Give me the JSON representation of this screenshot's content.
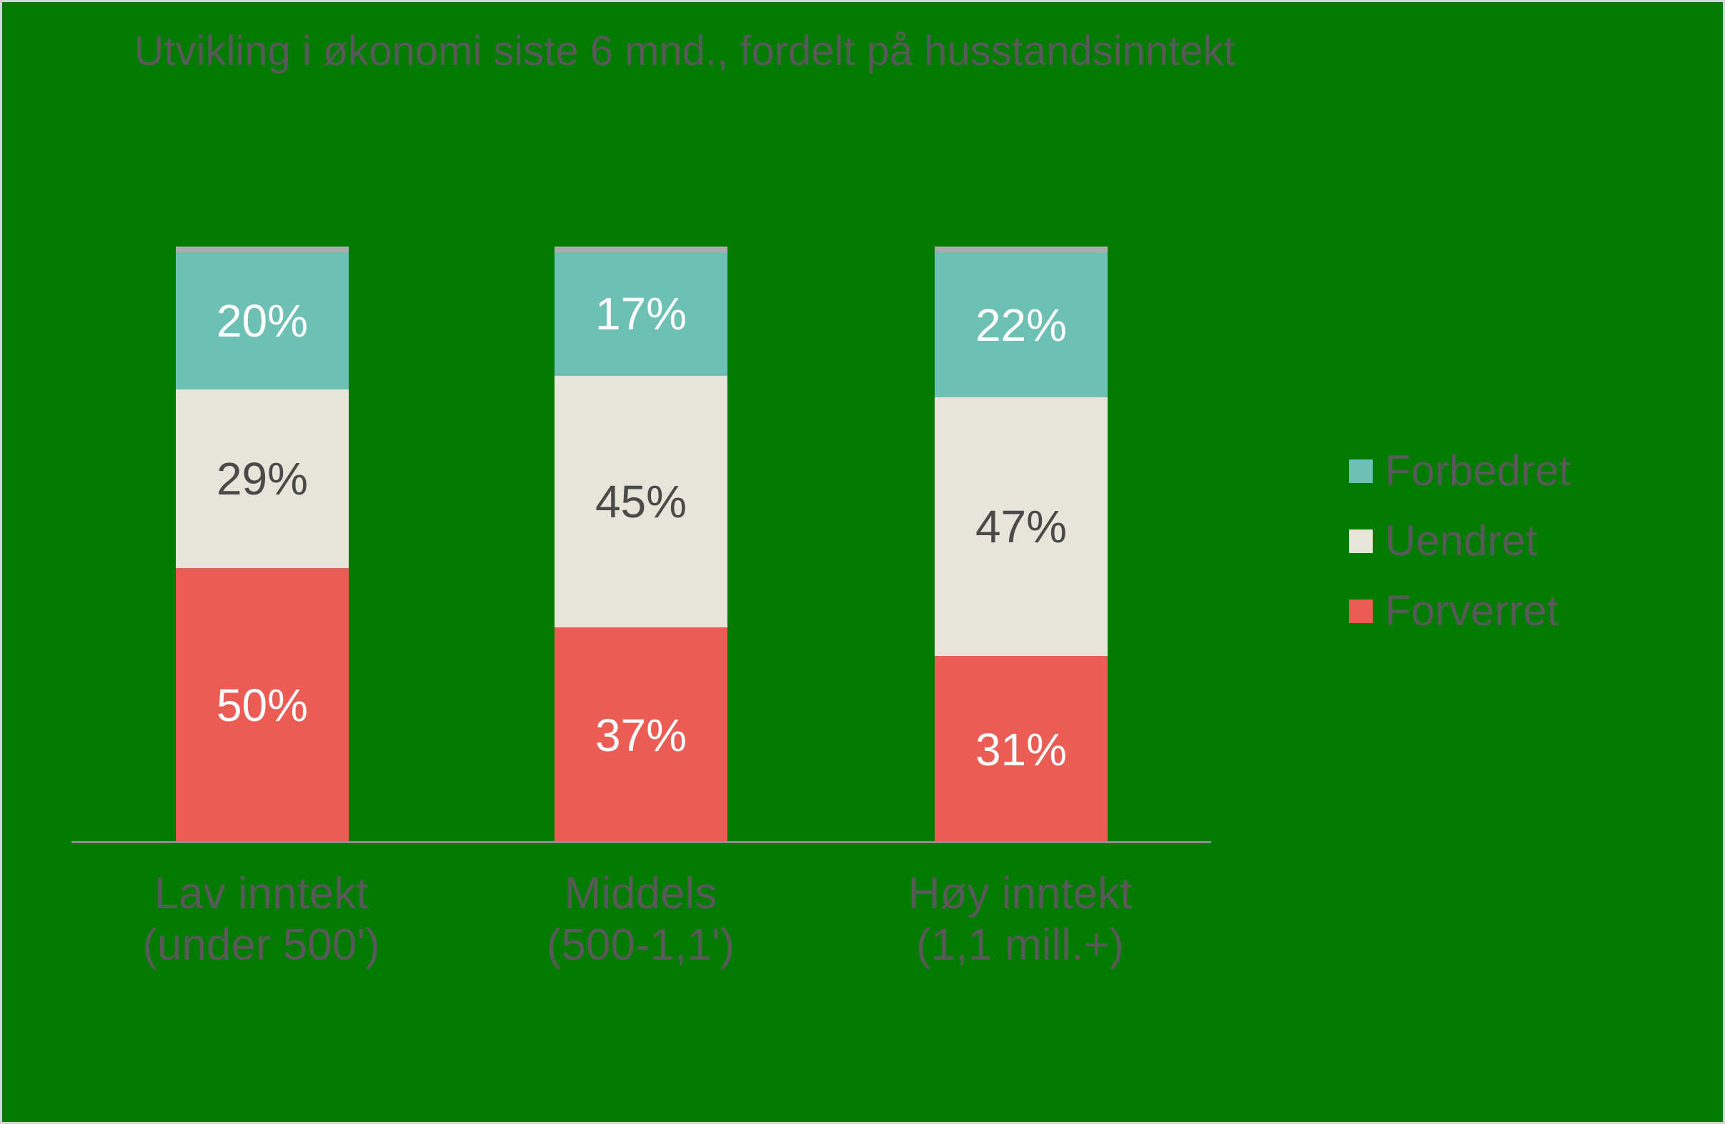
{
  "chart_data": {
    "type": "bar",
    "stacked": true,
    "orientation": "vertical",
    "title": "Utvikling i økonomi siste 6 mnd., fordelt på husstandsinntekt",
    "categories": [
      [
        "Lav inntekt",
        "(under 500')"
      ],
      [
        "Middels",
        "(500-1,1')"
      ],
      [
        "Høy inntekt",
        "(1,1 mill.+)"
      ]
    ],
    "series": [
      {
        "name": "Forbedret",
        "color": "#6dc0b3",
        "label_color": "#ffffff",
        "values": [
          20,
          17,
          22
        ],
        "labels": [
          "20%",
          "17%",
          "22%"
        ]
      },
      {
        "name": "Uendret",
        "color": "#e7e5da",
        "label_color": "#4a4a4a",
        "values": [
          29,
          45,
          47
        ],
        "labels": [
          "29%",
          "45%",
          "47%"
        ]
      },
      {
        "name": "Forverret",
        "color": "#eb5c55",
        "label_color": "#ffffff",
        "values": [
          50,
          37,
          31
        ],
        "labels": [
          "50%",
          "37%",
          "31%"
        ]
      }
    ],
    "value_format": "percent",
    "ylim": [
      0,
      100
    ],
    "grid": false,
    "y_axis_visible": false,
    "legend_position": "right",
    "colors": {
      "background": "#007b00",
      "bar_top_cap": "#acacac",
      "axis_line": "#8f8f8f",
      "text": "#595959"
    }
  }
}
